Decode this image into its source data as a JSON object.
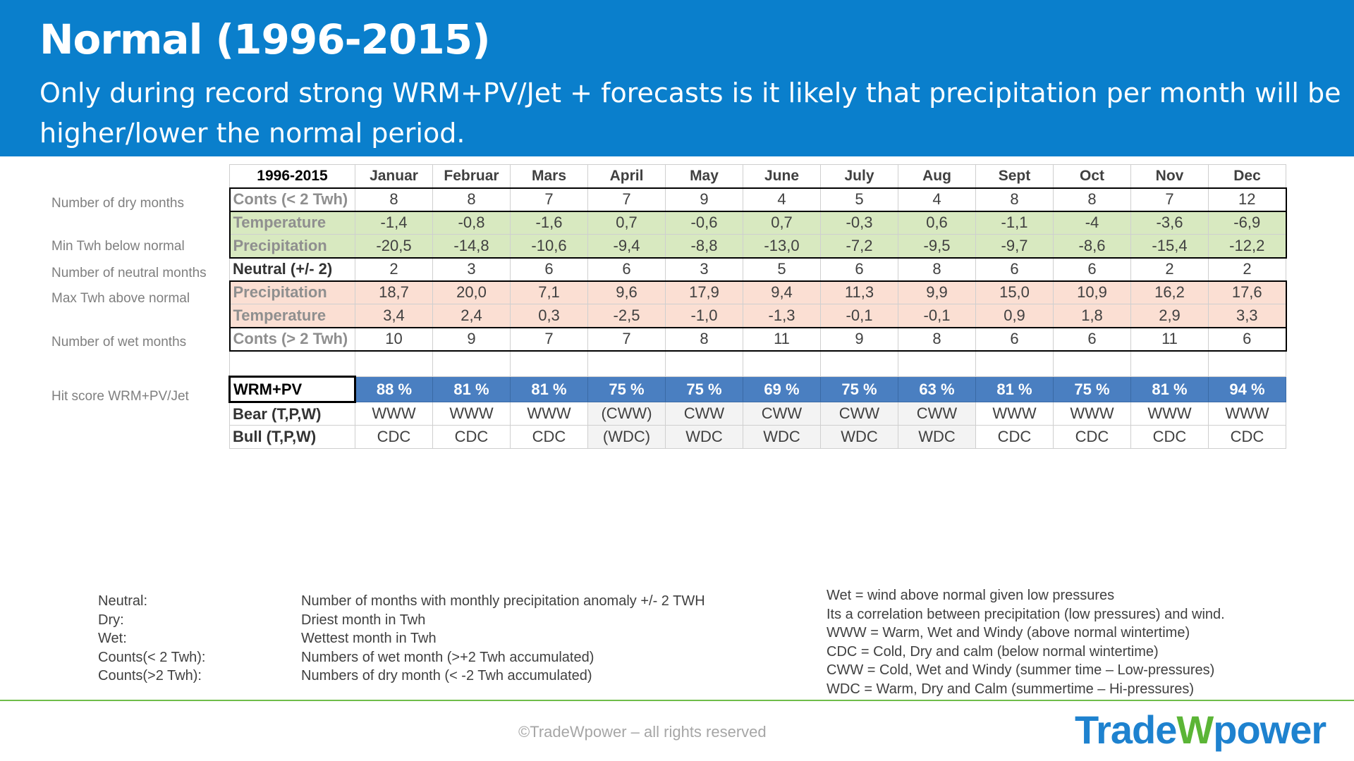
{
  "header": {
    "title": "Normal (1996-2015)",
    "subtitle": "Only during record strong WRM+PV/Jet + forecasts is it likely that precipitation per month will be higher/lower the normal period."
  },
  "row_labels": {
    "dry": "Number of dry months",
    "min": "Min Twh below normal",
    "neutral": "Number of neutral months",
    "max": "Max Twh above normal",
    "wet": "Number of wet months",
    "hit": "Hit score WRM+PV/Jet"
  },
  "table": {
    "corner": "1996-2015",
    "months": [
      "Januar",
      "Februar",
      "Mars",
      "April",
      "May",
      "June",
      "July",
      "Aug",
      "Sept",
      "Oct",
      "Nov",
      "Dec"
    ],
    "rows": [
      {
        "label": "Conts (< 2 Twh)",
        "values": [
          "8",
          "8",
          "7",
          "7",
          "9",
          "4",
          "5",
          "4",
          "8",
          "8",
          "7",
          "12"
        ]
      },
      {
        "label": "Temperature",
        "values": [
          "-1,4",
          "-0,8",
          "-1,6",
          "0,7",
          "-0,6",
          "0,7",
          "-0,3",
          "0,6",
          "-1,1",
          "-4",
          "-3,6",
          "-6,9"
        ]
      },
      {
        "label": "Precipitation",
        "values": [
          "-20,5",
          "-14,8",
          "-10,6",
          "-9,4",
          "-8,8",
          "-13,0",
          "-7,2",
          "-9,5",
          "-9,7",
          "-8,6",
          "-15,4",
          "-12,2"
        ]
      },
      {
        "label": "Neutral (+/- 2)",
        "values": [
          "2",
          "3",
          "6",
          "6",
          "3",
          "5",
          "6",
          "8",
          "6",
          "6",
          "2",
          "2"
        ]
      },
      {
        "label": "Precipitation",
        "values": [
          "18,7",
          "20,0",
          "7,1",
          "9,6",
          "17,9",
          "9,4",
          "11,3",
          "9,9",
          "15,0",
          "10,9",
          "16,2",
          "17,6"
        ]
      },
      {
        "label": "Temperature",
        "values": [
          "3,4",
          "2,4",
          "0,3",
          "-2,5",
          "-1,0",
          "-1,3",
          "-0,1",
          "-0,1",
          "0,9",
          "1,8",
          "2,9",
          "3,3"
        ]
      },
      {
        "label": "Conts (> 2 Twh)",
        "values": [
          "10",
          "9",
          "7",
          "7",
          "8",
          "11",
          "9",
          "8",
          "6",
          "6",
          "11",
          "6"
        ]
      },
      {
        "label": "WRM+PV",
        "values": [
          "88 %",
          "81 %",
          "81 %",
          "75 %",
          "75 %",
          "69 %",
          "75 %",
          "63 %",
          "81 %",
          "75 %",
          "81 %",
          "94 %"
        ]
      },
      {
        "label": "Bear (T,P,W)",
        "values": [
          "WWW",
          "WWW",
          "WWW",
          "(CWW)",
          "CWW",
          "CWW",
          "CWW",
          "CWW",
          "WWW",
          "WWW",
          "WWW",
          "WWW"
        ]
      },
      {
        "label": "Bull  (T,P,W)",
        "values": [
          "CDC",
          "CDC",
          "CDC",
          "(WDC)",
          "WDC",
          "WDC",
          "WDC",
          "WDC",
          "CDC",
          "CDC",
          "CDC",
          "CDC"
        ]
      }
    ]
  },
  "legend_left": [
    {
      "term": "Neutral:",
      "desc": "Number of months with monthly precipitation anomaly +/- 2 TWH"
    },
    {
      "term": "Dry:",
      "desc": "Driest month in Twh"
    },
    {
      "term": "Wet:",
      "desc": "Wettest month in Twh"
    },
    {
      "term": "Counts(< 2 Twh):",
      "desc": "Numbers of wet month (>+2 Twh accumulated)"
    },
    {
      "term": "Counts(>2 Twh):",
      "desc": "Numbers of dry month  (< -2 Twh accumulated)"
    }
  ],
  "legend_right": [
    "Wet = wind above normal given low pressures",
    "Its  a correlation between precipitation (low pressures) and wind.",
    "WWW = Warm, Wet and Windy (above normal wintertime)",
    "CDC = Cold, Dry and calm (below normal wintertime)",
    "CWW = Cold, Wet and Windy (summer time – Low-pressures)",
    "WDC = Warm, Dry and Calm (summertime – Hi-pressures)"
  ],
  "footer": {
    "copyright": "©TradeWpower – all rights reserved",
    "logo_part1": "Trade",
    "logo_part2": "W",
    "logo_part3": "power"
  },
  "colors": {
    "header_bg": "#0a7fcc",
    "green_rows": "#d8e9c0",
    "pink_rows": "#fbdfd3",
    "hit_row": "#4a7fc1",
    "footer_line": "#6fbd4a"
  }
}
